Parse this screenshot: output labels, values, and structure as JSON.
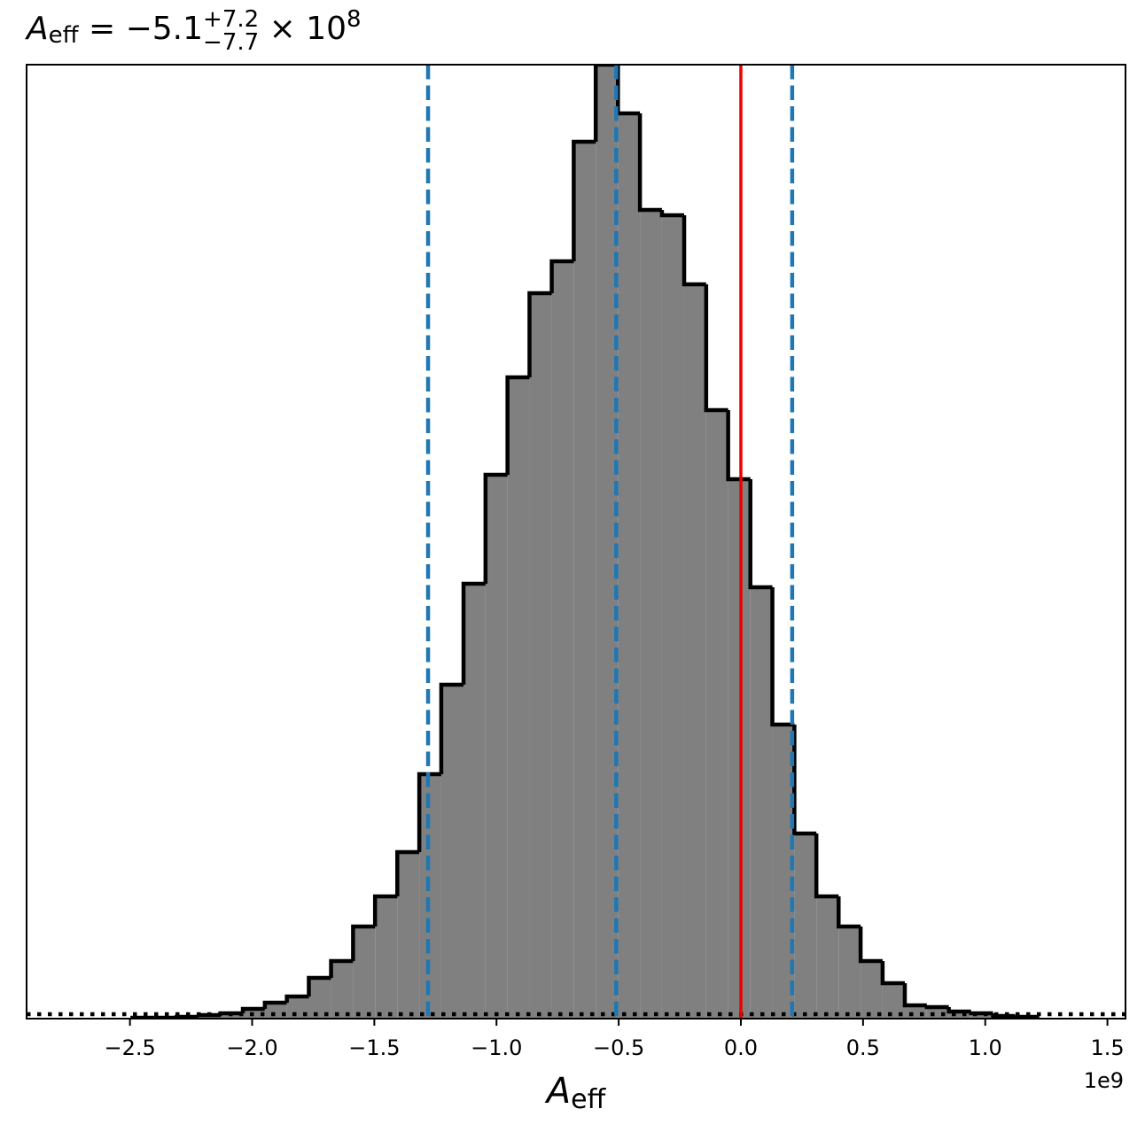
{
  "chart_data": {
    "type": "histogram",
    "title": {
      "symbol": "A",
      "subscript": "eff",
      "text": " = −5.1",
      "sup": "+7.2",
      "sub": "−7.7",
      "tail": " × 10",
      "exp": "8"
    },
    "xlabel": {
      "symbol": "A",
      "subscript": "eff"
    },
    "x_offset_label": "1e9",
    "bins": [
      -2.49,
      -2.4,
      -2.309,
      -2.219,
      -2.129,
      -2.038,
      -1.948,
      -1.858,
      -1.768,
      -1.677,
      -1.587,
      -1.497,
      -1.406,
      -1.316,
      -1.226,
      -1.135,
      -1.045,
      -0.955,
      -0.865,
      -0.774,
      -0.684,
      -0.594,
      -0.503,
      -0.413,
      -0.323,
      -0.232,
      -0.142,
      -0.052,
      0.039,
      0.129,
      0.219,
      0.309,
      0.4,
      0.49,
      0.58,
      0.671,
      0.761,
      0.851,
      0.942,
      1.032,
      1.122,
      1.213
    ],
    "values": [
      1,
      1,
      2,
      4,
      6,
      11,
      18,
      25,
      46,
      65,
      104,
      138,
      188,
      276,
      377,
      491,
      614,
      724,
      819,
      855,
      990,
      1077,
      1022,
      913,
      907,
      829,
      687,
      609,
      487,
      332,
      209,
      138,
      104,
      65,
      40,
      15,
      13,
      8,
      6,
      3,
      2
    ],
    "color": "#808080",
    "edge_color": "#000000",
    "quantiles": [
      -1.28,
      -0.51,
      0.21
    ],
    "quantile_color": "#1f77b4",
    "reference": 0,
    "reference_color": "#ee0000",
    "hline": 5,
    "xlim": [
      -2.923,
      1.574
    ],
    "ylim": [
      0,
      1077
    ],
    "xticks": [
      {
        "value": -2.5,
        "label": "−2.5"
      },
      {
        "value": -2.0,
        "label": "−2.0"
      },
      {
        "value": -1.5,
        "label": "−1.5"
      },
      {
        "value": -1.0,
        "label": "−1.0"
      },
      {
        "value": -0.5,
        "label": "−0.5"
      },
      {
        "value": 0,
        "label": "0.0"
      },
      0.5,
      {
        "value": 1.0,
        "label": "1.0"
      },
      1.5
    ]
  }
}
